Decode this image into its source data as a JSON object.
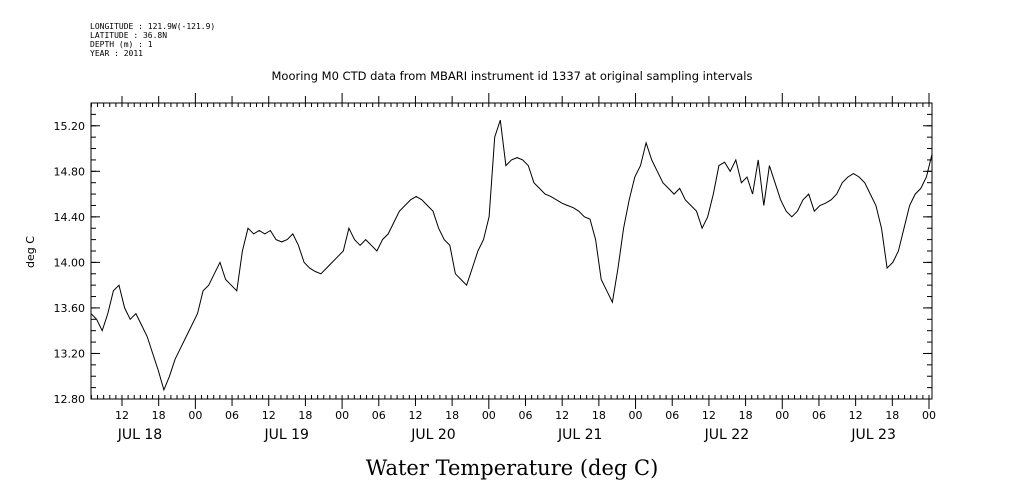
{
  "header": {
    "longitude": "LONGITUDE : 121.9W(-121.9)",
    "latitude": "LATITUDE : 36.8N",
    "depth": "DEPTH (m) : 1",
    "year": "YEAR : 2011"
  },
  "chart_data": {
    "type": "line",
    "title": "Mooring M0 CTD data from MBARI instrument id 1337 at original sampling intervals",
    "xlabel": "Water Temperature (deg C)",
    "ylabel": "deg C",
    "ylim": [
      12.8,
      15.4
    ],
    "yticks": [
      "12.80",
      "13.20",
      "13.60",
      "14.00",
      "14.40",
      "14.80",
      "15.20"
    ],
    "xticks_hour": [
      "12",
      "18",
      "00",
      "06",
      "12",
      "18",
      "00",
      "06",
      "12",
      "18",
      "00",
      "06",
      "12",
      "18",
      "00",
      "06",
      "12",
      "18",
      "00",
      "06",
      "12",
      "18",
      "00"
    ],
    "xticks_date": [
      "JUL 18",
      "JUL 19",
      "JUL 20",
      "JUL 21",
      "JUL 22",
      "JUL 23"
    ],
    "color": "#000000",
    "series": [
      {
        "x": [
          0,
          1,
          2,
          3,
          4,
          5,
          6,
          7,
          8,
          9,
          10,
          11,
          12,
          13,
          14,
          15,
          16,
          17,
          18,
          19,
          20,
          21,
          22,
          23,
          24,
          25,
          26,
          27,
          28,
          29,
          30,
          31,
          32,
          33,
          34,
          35,
          36,
          37,
          38,
          39,
          40,
          41,
          42,
          43,
          44,
          45,
          46,
          47,
          48,
          49,
          50,
          51,
          52,
          53,
          54,
          55,
          56,
          57,
          58,
          59,
          60,
          61,
          62,
          63,
          64,
          65,
          66,
          67,
          68,
          69,
          70,
          71,
          72,
          73,
          74,
          75,
          76,
          77,
          78,
          79,
          80,
          81,
          82,
          83,
          84,
          85,
          86,
          87,
          88,
          89,
          90,
          91,
          92,
          93,
          94,
          95,
          96,
          97,
          98,
          99,
          100,
          101,
          102,
          103,
          104,
          105,
          106,
          107,
          108,
          109,
          110,
          111,
          112,
          113,
          114,
          115,
          116,
          117,
          118,
          119,
          120,
          121,
          122,
          123,
          124,
          125,
          126,
          127,
          128,
          129,
          130,
          131,
          132,
          133,
          134,
          135,
          136,
          137,
          138,
          139,
          140,
          141,
          142,
          143,
          144,
          145,
          146,
          147,
          148,
          149,
          150
        ],
        "y": [
          13.55,
          13.5,
          13.4,
          13.55,
          13.75,
          13.8,
          13.6,
          13.5,
          13.55,
          13.45,
          13.35,
          13.2,
          13.05,
          12.88,
          13.0,
          13.15,
          13.25,
          13.35,
          13.45,
          13.55,
          13.75,
          13.8,
          13.9,
          14.0,
          13.85,
          13.8,
          13.75,
          14.1,
          14.3,
          14.25,
          14.28,
          14.25,
          14.28,
          14.2,
          14.18,
          14.2,
          14.25,
          14.15,
          14.0,
          13.95,
          13.92,
          13.9,
          13.95,
          14.0,
          14.05,
          14.1,
          14.3,
          14.2,
          14.15,
          14.2,
          14.15,
          14.1,
          14.2,
          14.25,
          14.35,
          14.45,
          14.5,
          14.55,
          14.58,
          14.55,
          14.5,
          14.45,
          14.3,
          14.2,
          14.15,
          13.9,
          13.85,
          13.8,
          13.95,
          14.1,
          14.2,
          14.4,
          15.1,
          15.25,
          14.85,
          14.9,
          14.92,
          14.9,
          14.85,
          14.7,
          14.65,
          14.6,
          14.58,
          14.55,
          14.52,
          14.5,
          14.48,
          14.45,
          14.4,
          14.38,
          14.2,
          13.85,
          13.75,
          13.65,
          13.95,
          14.3,
          14.55,
          14.75,
          14.85,
          15.05,
          14.9,
          14.8,
          14.7,
          14.65,
          14.6,
          14.65,
          14.55,
          14.5,
          14.45,
          14.3,
          14.4,
          14.6,
          14.85,
          14.88,
          14.8,
          14.9,
          14.7,
          14.75,
          14.6,
          14.9,
          14.5,
          14.85,
          14.7,
          14.55,
          14.45,
          14.4,
          14.45,
          14.55,
          14.6,
          14.45,
          14.5,
          14.52,
          14.55,
          14.6,
          14.7,
          14.75,
          14.78,
          14.75,
          14.7,
          14.6,
          14.5,
          14.3,
          13.95,
          14.0,
          14.1,
          14.3,
          14.5,
          14.6,
          14.65,
          14.75,
          14.95
        ]
      }
    ]
  }
}
